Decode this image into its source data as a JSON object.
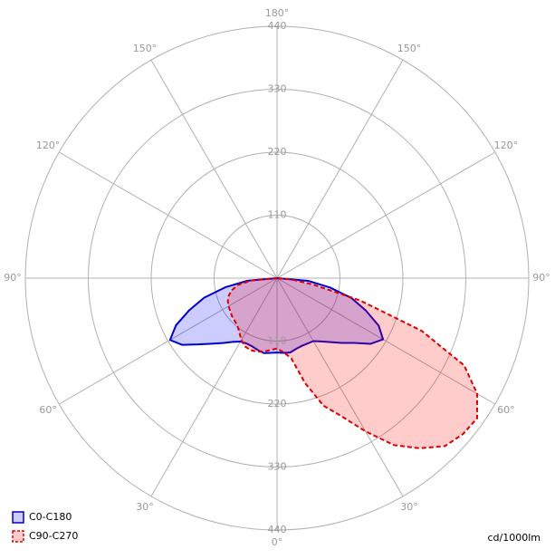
{
  "chart_data": {
    "type": "polar",
    "unit_label": "cd/1000lm",
    "rlim": [
      0,
      440
    ],
    "rticks": [
      110,
      220,
      330,
      440
    ],
    "angle_ticks": [
      {
        "value": 0,
        "label": "0°"
      },
      {
        "value": 30,
        "label": "30°"
      },
      {
        "value": 60,
        "label": "60°"
      },
      {
        "value": 90,
        "label": "90°"
      },
      {
        "value": 120,
        "label": "120°"
      },
      {
        "value": 150,
        "label": "150°"
      },
      {
        "value": 180,
        "label": "180°"
      },
      {
        "value": -30,
        "label": "30°"
      },
      {
        "value": -60,
        "label": "60°"
      },
      {
        "value": -90,
        "label": "90°"
      },
      {
        "value": -120,
        "label": "120°"
      },
      {
        "value": -150,
        "label": "150°"
      }
    ],
    "legend": "lower left",
    "x": [
      -90,
      -85,
      -80,
      -75,
      -70,
      -65,
      -60,
      -55,
      -50,
      -45,
      -40,
      -35,
      -30,
      -25,
      -20,
      -15,
      -10,
      -5,
      0,
      5,
      10,
      15,
      20,
      25,
      30,
      35,
      40,
      45,
      50,
      55,
      60,
      65,
      70,
      75,
      80,
      85,
      90
    ],
    "series": [
      {
        "name": "C0-C180",
        "color": "#0000cc",
        "fill": "rgba(0,0,255,0.2)",
        "linestyle": "solid",
        "values": [
          0,
          52,
          92,
          132,
          163,
          195,
          216,
          203,
          180,
          162,
          148,
          136,
          128,
          126,
          127,
          130,
          133,
          131,
          130,
          131,
          132,
          128,
          126,
          126,
          127,
          135,
          146,
          160,
          176,
          200,
          214,
          196,
          165,
          135,
          94,
          55,
          0
        ]
      },
      {
        "name": "C90-C270",
        "color": "#dd0000",
        "fill": "rgba(255,0,0,0.2)",
        "linestyle": "dashed",
        "values": [
          0,
          45,
          70,
          82,
          90,
          95,
          98,
          100,
          103,
          105,
          108,
          115,
          125,
          132,
          134,
          133,
          130,
          126,
          123,
          130,
          142,
          190,
          237,
          266,
          309,
          356,
          388,
          415,
          424,
          427,
          404,
          361,
          269,
          150,
          63,
          24,
          0
        ]
      }
    ]
  }
}
